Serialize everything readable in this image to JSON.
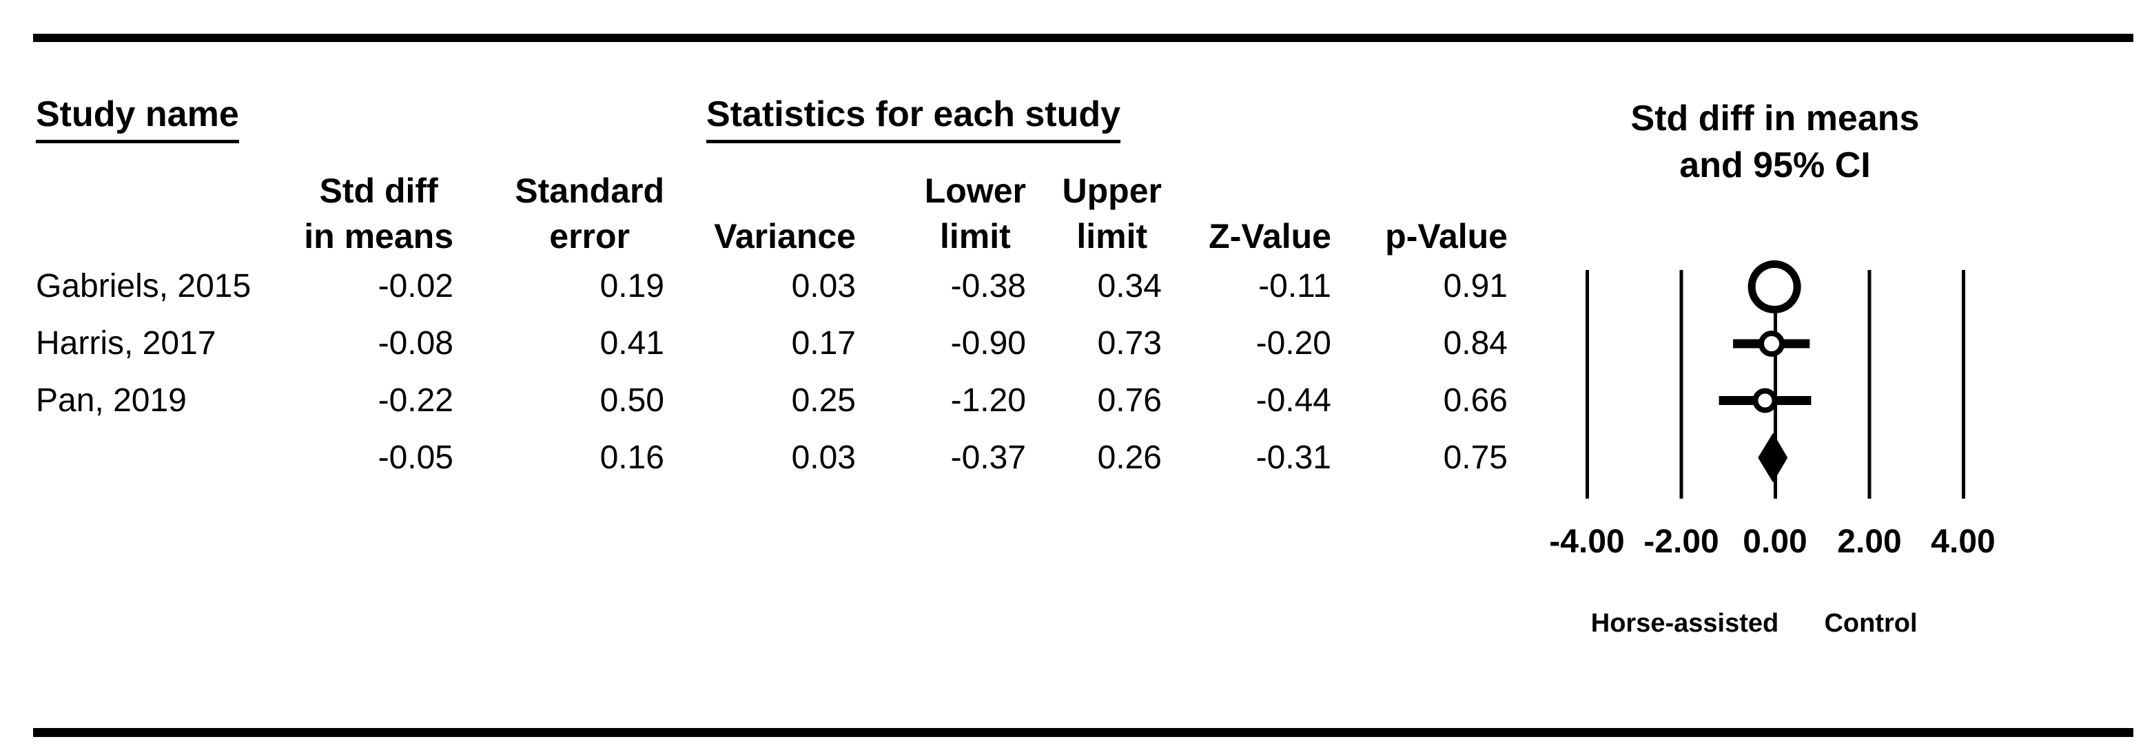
{
  "figure": {
    "study_column_header": "Study name",
    "stats_group_header": "Statistics for each study",
    "plot_title_line1": "Std diff in means",
    "plot_title_line2": "and 95% CI"
  },
  "table": {
    "columns": [
      {
        "l1": "Std diff",
        "l2": "in means"
      },
      {
        "l1": "Standard",
        "l2": "error"
      },
      {
        "l1": "",
        "l2": "Variance"
      },
      {
        "l1": "Lower",
        "l2": "limit"
      },
      {
        "l1": "Upper",
        "l2": "limit"
      },
      {
        "l1": "",
        "l2": "Z-Value"
      },
      {
        "l1": "",
        "l2": "p-Value"
      }
    ],
    "rows": [
      {
        "study": "Gabriels, 2015",
        "values": [
          "-0.02",
          "0.19",
          "0.03",
          "-0.38",
          "0.34",
          "-0.11",
          "0.91"
        ]
      },
      {
        "study": "Harris, 2017",
        "values": [
          "-0.08",
          "0.41",
          "0.17",
          "-0.90",
          "0.73",
          "-0.20",
          "0.84"
        ]
      },
      {
        "study": "Pan, 2019",
        "values": [
          "-0.22",
          "0.50",
          "0.25",
          "-1.20",
          "0.76",
          "-0.44",
          "0.66"
        ]
      },
      {
        "study": "",
        "values": [
          "-0.05",
          "0.16",
          "0.03",
          "-0.37",
          "0.26",
          "-0.31",
          "0.75"
        ]
      }
    ]
  },
  "chart_data": {
    "type": "forest",
    "title": "Std diff in means and 95% CI",
    "effect_measure": "Std diff in means",
    "x_ticks": [
      -4,
      -2,
      0,
      2,
      4
    ],
    "x_tick_labels": [
      "-4.00",
      "-2.00",
      "0.00",
      "2.00",
      "4.00"
    ],
    "xlim": [
      -4,
      4
    ],
    "grid": true,
    "axis_group_labels": {
      "left": "Horse-assisted",
      "right": "Control"
    },
    "studies": [
      {
        "name": "Gabriels, 2015",
        "value": -0.02,
        "se": 0.19,
        "variance": 0.03,
        "lower": -0.38,
        "upper": 0.34,
        "z": -0.11,
        "p": 0.91,
        "marker_r": 33,
        "marker_stroke": 11
      },
      {
        "name": "Harris, 2017",
        "value": -0.08,
        "se": 0.41,
        "variance": 0.17,
        "lower": -0.9,
        "upper": 0.73,
        "z": -0.2,
        "p": 0.84,
        "marker_r": 15,
        "marker_stroke": 8
      },
      {
        "name": "Pan, 2019",
        "value": -0.22,
        "se": 0.5,
        "variance": 0.25,
        "lower": -1.2,
        "upper": 0.76,
        "z": -0.44,
        "p": 0.66,
        "marker_r": 14,
        "marker_stroke": 8
      }
    ],
    "overall": {
      "value": -0.05,
      "se": 0.16,
      "variance": 0.03,
      "lower": -0.37,
      "upper": 0.26,
      "z": -0.31,
      "p": 0.75,
      "marker": "diamond"
    },
    "colors": {
      "foreground": "#000000",
      "background": "#ffffff"
    }
  }
}
